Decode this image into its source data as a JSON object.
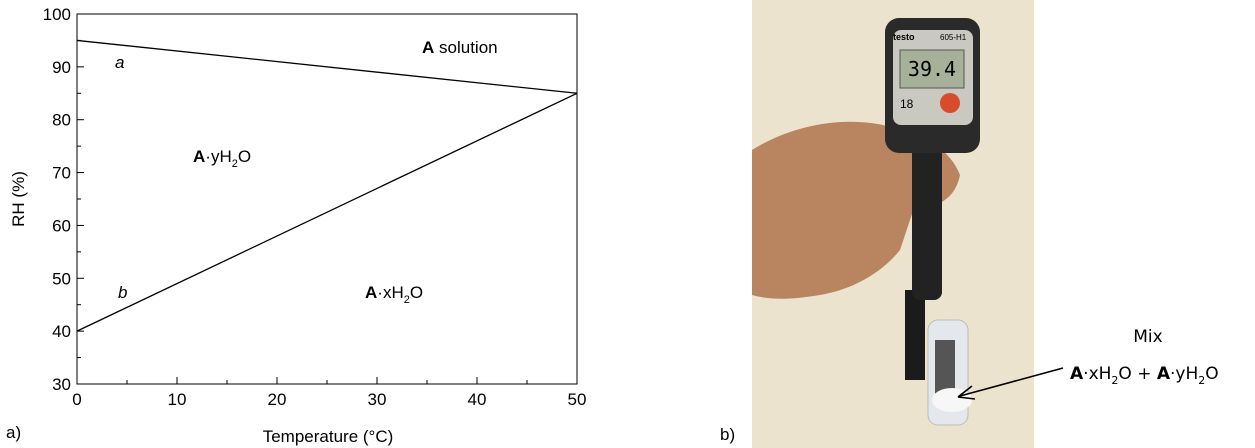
{
  "chart_data": {
    "type": "line",
    "panel_label": "a)",
    "x_label": "Temperature (°C)",
    "y_label": "RH (%)",
    "x": [
      0,
      50
    ],
    "series": [
      {
        "name": "a",
        "color": "#000000",
        "values": [
          95,
          85
        ]
      },
      {
        "name": "b",
        "color": "#000000",
        "values": [
          40,
          85
        ]
      }
    ],
    "xlim": [
      0,
      50
    ],
    "xticks": [
      0,
      10,
      20,
      30,
      40,
      50
    ],
    "ylim": [
      30,
      100
    ],
    "yticks": [
      30,
      40,
      50,
      60,
      70,
      80,
      90,
      100
    ],
    "annotations": [
      [
        "A",
        " solution"
      ],
      [
        "A",
        "·yH",
        "2",
        "O"
      ],
      [
        "A",
        "·xH",
        "2",
        "O"
      ]
    ]
  },
  "photo": {
    "panel_label": "b)",
    "device_brand": "testo",
    "device_model": "605-H1",
    "display": "39.4",
    "handwritten": "18",
    "caption_title": "Mix",
    "caption": [
      "A",
      "·xH",
      "2",
      "O + ",
      "A",
      "·yH",
      "2",
      "O"
    ]
  }
}
